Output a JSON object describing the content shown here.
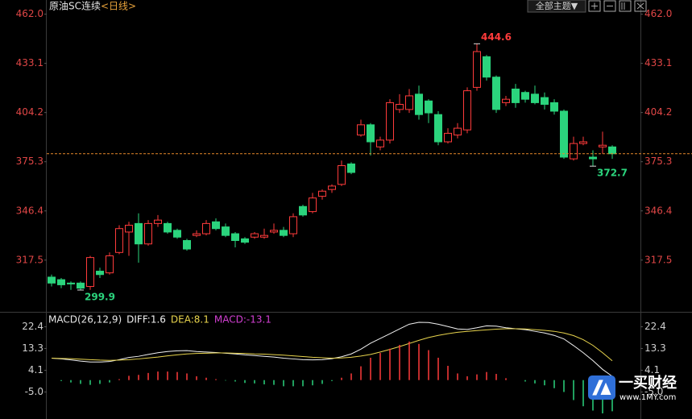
{
  "header": {
    "symbol": "原油SC连续",
    "period": "<日线>"
  },
  "toolbar": {
    "button": "全部主题▼"
  },
  "watermark": {
    "title": "一买财经",
    "url": "www.1MY.com"
  },
  "chart_data": [
    {
      "type": "candlestick",
      "up_color": "#ff3b3b",
      "down_color": "#2bd47d",
      "price_line_color": "#e8892b",
      "ylim": [
        289,
        467
      ],
      "yticks": [
        {
          "value": 462,
          "label": "462.0"
        },
        433.1,
        404.2,
        375.3,
        346.4,
        317.5
      ],
      "open": [
        307.5,
        306,
        304,
        304,
        302,
        311,
        310,
        322,
        334,
        339,
        327,
        339,
        339,
        335,
        329,
        332,
        333,
        340,
        337,
        333,
        330,
        331,
        331,
        334,
        335,
        333,
        349,
        346,
        355,
        359,
        362,
        374,
        391,
        397,
        384,
        388,
        406,
        406,
        415,
        411,
        403,
        387,
        391,
        394,
        419,
        437,
        425,
        410,
        418,
        416,
        415,
        413,
        410,
        405,
        377,
        386,
        378,
        384,
        384
      ],
      "high": [
        309,
        307,
        305,
        305,
        320,
        313,
        322,
        338,
        340,
        345,
        341,
        344,
        340,
        336,
        330,
        335,
        341,
        342,
        339,
        334,
        331,
        334,
        336,
        339,
        337,
        345,
        350,
        357,
        359,
        362,
        376,
        375,
        400,
        398,
        390,
        412,
        415,
        418,
        420,
        412,
        405,
        395,
        398,
        419,
        444.6,
        438,
        426,
        414,
        421,
        417,
        420,
        416,
        412,
        406,
        390,
        390,
        382,
        393,
        385
      ],
      "low": [
        302,
        301,
        300,
        299.9,
        300,
        307,
        309,
        321,
        320,
        316,
        326,
        337,
        333,
        330,
        323,
        331,
        332,
        335,
        331,
        325,
        327,
        330,
        330,
        333,
        331,
        331,
        343,
        345,
        353,
        357,
        361,
        368,
        390,
        379,
        382,
        386,
        404,
        404,
        400,
        398,
        385,
        386,
        389,
        392,
        417,
        423,
        404,
        408,
        407,
        410,
        409,
        406,
        403,
        377,
        376,
        385,
        372.7,
        380,
        377
      ],
      "close": [
        304,
        303,
        303.5,
        301,
        319,
        309,
        320,
        336,
        338,
        327,
        339,
        341,
        334,
        331,
        324,
        333,
        339,
        336,
        332,
        329,
        328,
        333,
        332,
        335,
        332,
        343,
        344,
        354,
        358,
        361,
        373,
        369,
        397,
        387,
        388,
        410,
        409,
        414,
        403,
        404,
        387,
        392,
        395,
        417,
        440,
        425,
        406,
        412,
        410,
        412,
        410,
        409,
        405,
        378,
        386,
        387,
        377,
        385,
        380
      ],
      "annotations": [
        {
          "value": 444.6
        },
        {
          "value": 372.7
        },
        {
          "value": 299.9
        }
      ]
    },
    {
      "type": "macd",
      "title": "MACD(26,12,9)",
      "up_color": "#ff3b3b",
      "down_color": "#2bd47d",
      "ylim": [
        -15,
        27
      ],
      "yticks": [
        22.4,
        13.3,
        4.1,
        {
          "value": -5,
          "label": "-5.0"
        }
      ],
      "series": [
        {
          "name": "DIFF:1.6",
          "color": "#f2f2f2",
          "values": [
            9.2,
            8.9,
            8.5,
            8.0,
            7.6,
            7.6,
            7.8,
            8.6,
            9.5,
            10.0,
            10.8,
            11.5,
            12.0,
            12.3,
            12.4,
            12.0,
            11.8,
            11.6,
            11.3,
            11.0,
            10.6,
            10.3,
            10.0,
            9.7,
            9.2,
            8.9,
            8.6,
            8.5,
            8.6,
            9.0,
            9.8,
            11.0,
            13.0,
            15.5,
            17.5,
            19.5,
            21.5,
            23.5,
            24.3,
            24.2,
            23.5,
            22.5,
            21.5,
            21.3,
            22.0,
            22.8,
            22.7,
            22.0,
            21.6,
            21.2,
            20.5,
            19.8,
            18.8,
            17.3,
            14.5,
            11.5,
            8.2,
            4.5,
            1.6
          ]
        },
        {
          "name": "DEA:8.1",
          "color": "#e8d44d",
          "values": [
            9.2,
            9.1,
            9.0,
            8.8,
            8.6,
            8.4,
            8.3,
            8.4,
            8.6,
            8.9,
            9.3,
            9.7,
            10.2,
            10.6,
            11.0,
            11.2,
            11.3,
            11.4,
            11.4,
            11.3,
            11.2,
            11.0,
            10.9,
            10.7,
            10.5,
            10.2,
            9.9,
            9.6,
            9.4,
            9.2,
            9.3,
            9.6,
            10.1,
            10.8,
            11.8,
            12.9,
            14.1,
            15.4,
            16.7,
            17.9,
            18.8,
            19.5,
            20.1,
            20.5,
            20.8,
            21.1,
            21.4,
            21.6,
            21.6,
            21.5,
            21.2,
            20.9,
            20.5,
            19.8,
            18.7,
            17.0,
            14.6,
            11.5,
            8.1
          ]
        },
        {
          "name": "MACD:-13.1",
          "color": "#d23fd2",
          "values": [
            0,
            -0.4,
            -1.0,
            -1.6,
            -2.0,
            -1.6,
            -1.0,
            0.4,
            1.8,
            2.2,
            3.0,
            3.6,
            3.6,
            3.4,
            2.8,
            1.6,
            1.0,
            0.4,
            -0.2,
            -0.6,
            -1.2,
            -1.4,
            -1.8,
            -2.0,
            -2.6,
            -2.6,
            -2.6,
            -2.2,
            -1.6,
            -0.4,
            1.0,
            2.8,
            5.8,
            9.4,
            11.4,
            13.2,
            14.8,
            16.2,
            15.2,
            12.6,
            9.4,
            6.0,
            2.8,
            1.6,
            2.4,
            3.4,
            2.6,
            0.8,
            0,
            -0.6,
            -1.4,
            -2.2,
            -3.4,
            -5.0,
            -8.4,
            -11.0,
            -12.8,
            -14.0,
            -13.1
          ]
        }
      ]
    }
  ]
}
